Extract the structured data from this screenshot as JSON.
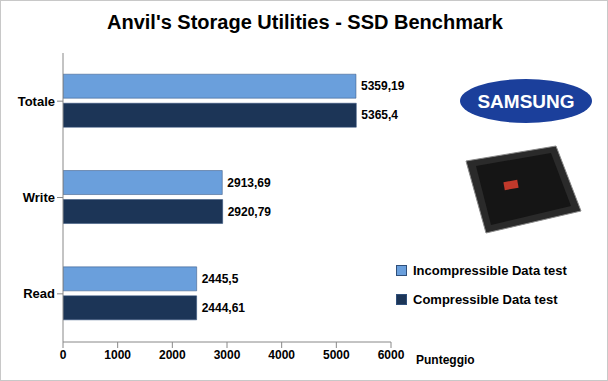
{
  "chart_data": {
    "type": "bar",
    "orientation": "horizontal",
    "title": "Anvil's Storage Utilities - SSD Benchmark",
    "x_label": "Punteggio",
    "annotations": [
      "SAMSUNG"
    ],
    "categories": [
      "Totale",
      "Write",
      "Read"
    ],
    "series": [
      {
        "name": "Incompressible Data test",
        "color": "#6a9fdc",
        "values": [
          5359.19,
          2913.69,
          2445.5
        ],
        "value_labels": [
          "5359,19",
          "2913,69",
          "2445,5"
        ]
      },
      {
        "name": "Compressible Data test",
        "color": "#1c3557",
        "values": [
          5365.4,
          2920.79,
          2444.61
        ],
        "value_labels": [
          "5365,4",
          "2920,79",
          "2444,61"
        ]
      }
    ],
    "xlim": [
      0,
      6000
    ],
    "xticks": [
      0,
      1000,
      2000,
      3000,
      4000,
      5000,
      6000
    ],
    "grid": false,
    "legend": "right",
    "data_labels": true
  }
}
